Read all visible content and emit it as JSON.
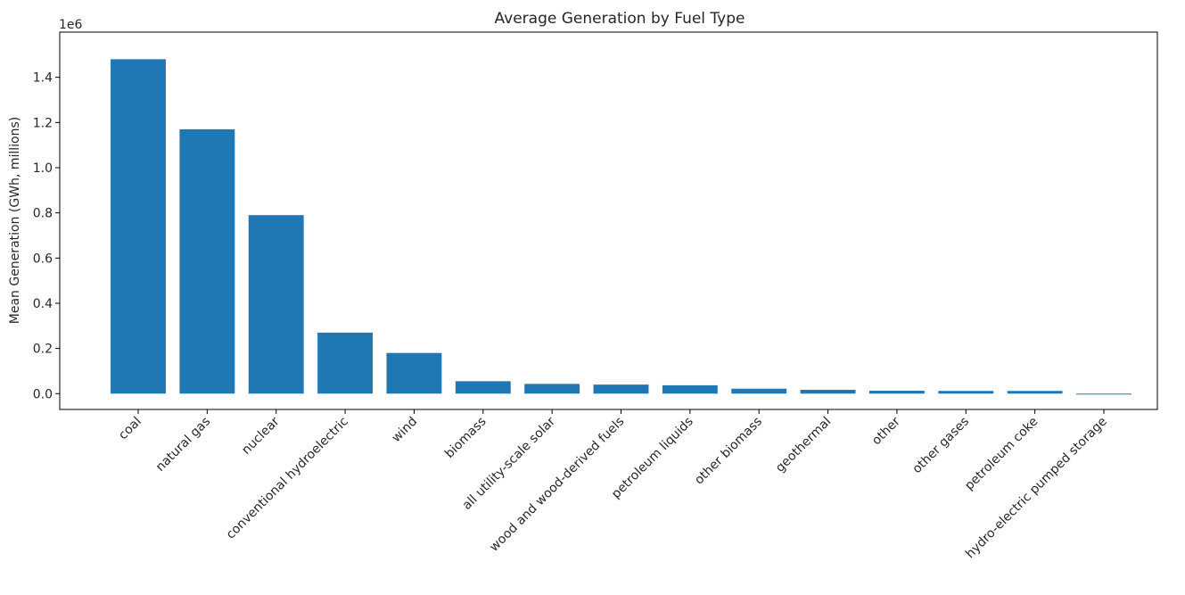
{
  "chart_data": {
    "type": "bar",
    "title": "Average Generation by Fuel Type",
    "xlabel": "",
    "ylabel": "Mean Generation (GWh, millions)",
    "y_scale_label": "1e6",
    "ylim": [
      -0.07,
      1.6
    ],
    "y_ticks": [
      0.0,
      0.2,
      0.4,
      0.6,
      0.8,
      1.0,
      1.2,
      1.4
    ],
    "y_tick_labels": [
      "0.0",
      "0.2",
      "0.4",
      "0.6",
      "0.8",
      "1.0",
      "1.2",
      "1.4"
    ],
    "categories": [
      "coal",
      "natural gas",
      "nuclear",
      "conventional hydroelectric",
      "wind",
      "biomass",
      "all utility-scale solar",
      "wood and wood-derived fuels",
      "petroleum liquids",
      "other biomass",
      "geothermal",
      "other",
      "other gases",
      "petroleum coke",
      "hydro-electric pumped storage"
    ],
    "values": [
      1.48,
      1.17,
      0.79,
      0.27,
      0.18,
      0.055,
      0.043,
      0.04,
      0.037,
      0.022,
      0.017,
      0.013,
      0.012,
      0.012,
      -0.004
    ],
    "bar_color": "#1f77b4",
    "grid": false,
    "legend": "none"
  }
}
